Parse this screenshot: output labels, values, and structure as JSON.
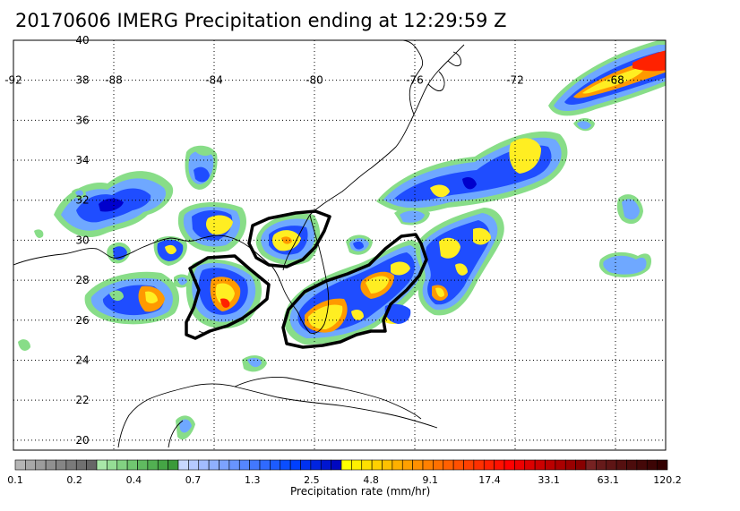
{
  "title": "20170606 IMERG Precipitation ending at 12:29:59 Z",
  "map": {
    "lon_range": [
      -92,
      -66
    ],
    "lat_range": [
      19.5,
      40
    ],
    "lat_ticks": [
      "40",
      "38",
      "36",
      "34",
      "32",
      "30",
      "28",
      "26",
      "24",
      "22",
      "20"
    ],
    "lon_ticks": [
      "-92",
      "-88",
      "-84",
      "-80",
      "-76",
      "-72",
      "-68"
    ],
    "grid": "dotted"
  },
  "colorbar": {
    "title": "Precipitation rate (mm/hr)",
    "tick_labels": [
      "0.1",
      "0.2",
      "0.4",
      "0.7",
      "1.3",
      "2.5",
      "4.8",
      "9.1",
      "17.4",
      "33.1",
      "63.1",
      "120.2"
    ],
    "colors": [
      "#b5b5b5",
      "#a8a8a8",
      "#9c9c9c",
      "#909090",
      "#858585",
      "#7a7a7a",
      "#707070",
      "#666666",
      "#a8e8a8",
      "#95dd95",
      "#82d282",
      "#70c770",
      "#60bb60",
      "#52b052",
      "#45a545",
      "#3a9a3a",
      "#c8d8ff",
      "#b5caff",
      "#a2bcff",
      "#8fb0ff",
      "#7ca2ff",
      "#6894ff",
      "#5586ff",
      "#4278ff",
      "#2f6aff",
      "#1c5cff",
      "#0a4eff",
      "#0040ff",
      "#0032f0",
      "#0024e0",
      "#0016d0",
      "#0008c0",
      "#ffff00",
      "#fff000",
      "#ffe000",
      "#ffd000",
      "#ffc000",
      "#ffb000",
      "#ffa000",
      "#ff9000",
      "#ff8000",
      "#ff7000",
      "#ff6000",
      "#ff5000",
      "#ff4000",
      "#ff3000",
      "#ff2000",
      "#ff1000",
      "#ff0000",
      "#ee0000",
      "#dd0000",
      "#cc0000",
      "#bb0000",
      "#aa0000",
      "#990000",
      "#880000",
      "#772222",
      "#661a1a",
      "#5e1515",
      "#551010",
      "#4c0c0c",
      "#440808",
      "#3c0505",
      "#330000"
    ]
  },
  "colors": {
    "light_green": "#88dd88",
    "light_blue": "#6fa8ff",
    "blue": "#1f4dff",
    "dark_blue": "#0000cc",
    "yellow": "#ffee22",
    "orange": "#ff9900",
    "red": "#ff2200",
    "dark_red": "#bb0000",
    "outline": "#000000"
  }
}
